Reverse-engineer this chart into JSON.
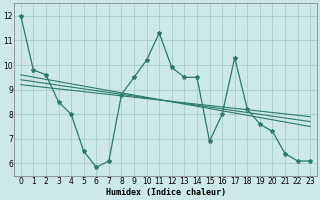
{
  "line1_x": [
    0,
    1,
    2,
    3,
    4,
    5,
    6,
    7,
    8,
    9,
    10,
    11,
    12,
    13,
    14,
    15,
    16,
    17,
    18,
    19,
    20,
    21,
    22,
    23
  ],
  "line1_y": [
    12.0,
    9.8,
    9.6,
    8.5,
    8.0,
    6.5,
    5.85,
    6.1,
    8.8,
    9.5,
    10.2,
    11.3,
    9.9,
    9.5,
    9.5,
    6.9,
    8.0,
    10.3,
    8.2,
    7.6,
    7.3,
    6.4,
    6.1,
    6.1
  ],
  "trend_lines": [
    {
      "x": [
        0,
        23
      ],
      "y": [
        9.6,
        7.5
      ]
    },
    {
      "x": [
        0,
        23
      ],
      "y": [
        9.4,
        7.7
      ]
    },
    {
      "x": [
        0,
        23
      ],
      "y": [
        9.2,
        7.9
      ]
    }
  ],
  "bg_color": "#cce8e8",
  "grid_color": "#aacccc",
  "line_color": "#2a7a6a",
  "xlabel": "Humidex (Indice chaleur)",
  "xlim": [
    -0.5,
    23.5
  ],
  "ylim": [
    5.5,
    12.5
  ],
  "yticks": [
    6,
    7,
    8,
    9,
    10,
    11,
    12
  ],
  "xticks": [
    0,
    1,
    2,
    3,
    4,
    5,
    6,
    7,
    8,
    9,
    10,
    11,
    12,
    13,
    14,
    15,
    16,
    17,
    18,
    19,
    20,
    21,
    22,
    23
  ]
}
